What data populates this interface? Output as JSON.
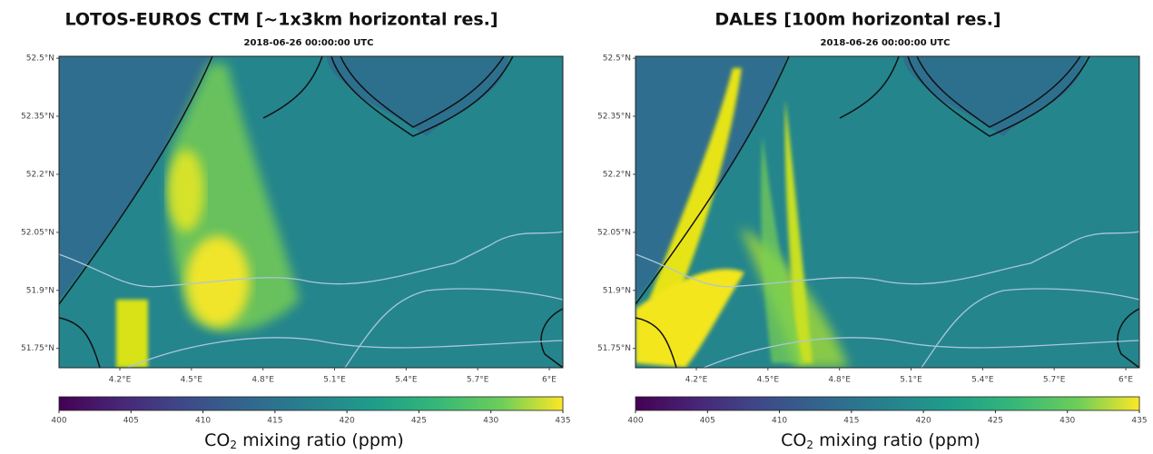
{
  "panels": [
    {
      "title": "LOTOS-EUROS CTM [~1x3km horizontal res.]",
      "subtitle": "2018-06-26 00:00:00 UTC",
      "lonlim": [
        3.945,
        6.057
      ],
      "latlim": [
        51.7,
        52.505
      ],
      "lonticks": [
        {
          "value": 4.2,
          "label": "4.2°E"
        },
        {
          "value": 4.5,
          "label": "4.5°E"
        },
        {
          "value": 4.8,
          "label": "4.8°E"
        },
        {
          "value": 5.1,
          "label": "5.1°E"
        },
        {
          "value": 5.4,
          "label": "5.4°E"
        },
        {
          "value": 5.7,
          "label": "5.7°E"
        },
        {
          "value": 6,
          "label": "6°E"
        }
      ],
      "latticks": [
        {
          "value": 52.5,
          "label": "52.5°N"
        },
        {
          "value": 52.35,
          "label": "52.35°N"
        },
        {
          "value": 52.2,
          "label": "52.2°N"
        },
        {
          "value": 52.05,
          "label": "52.05°N"
        },
        {
          "value": 51.9,
          "label": "51.9°N"
        },
        {
          "value": 51.75,
          "label": "51.75°N"
        }
      ],
      "clim": [
        400,
        435
      ],
      "cticks": [
        400,
        405,
        410,
        415,
        420,
        425,
        430,
        435
      ],
      "colorbar_label": {
        "main": "CO",
        "sub": "2",
        "rest": " mixing ratio (ppm)"
      }
    },
    {
      "title": "DALES [100m horizontal res.]",
      "subtitle": "2018-06-26 00:00:00 UTC",
      "lonlim": [
        3.945,
        6.057
      ],
      "latlim": [
        51.7,
        52.505
      ],
      "lonticks": [
        {
          "value": 4.2,
          "label": "4.2°E"
        },
        {
          "value": 4.5,
          "label": "4.5°E"
        },
        {
          "value": 4.8,
          "label": "4.8°E"
        },
        {
          "value": 5.1,
          "label": "5.1°E"
        },
        {
          "value": 5.4,
          "label": "5.4°E"
        },
        {
          "value": 5.7,
          "label": "5.7°E"
        },
        {
          "value": 6,
          "label": "6°E"
        }
      ],
      "latticks": [
        {
          "value": 52.5,
          "label": "52.5°N"
        },
        {
          "value": 52.35,
          "label": "52.35°N"
        },
        {
          "value": 52.2,
          "label": "52.2°N"
        },
        {
          "value": 52.05,
          "label": "52.05°N"
        },
        {
          "value": 51.9,
          "label": "51.9°N"
        },
        {
          "value": 51.75,
          "label": "51.75°N"
        }
      ],
      "clim": [
        400,
        435
      ],
      "cticks": [
        400,
        405,
        410,
        415,
        420,
        425,
        430,
        435
      ],
      "colorbar_label": {
        "main": "CO",
        "sub": "2",
        "rest": " mixing ratio (ppm)"
      }
    }
  ]
}
